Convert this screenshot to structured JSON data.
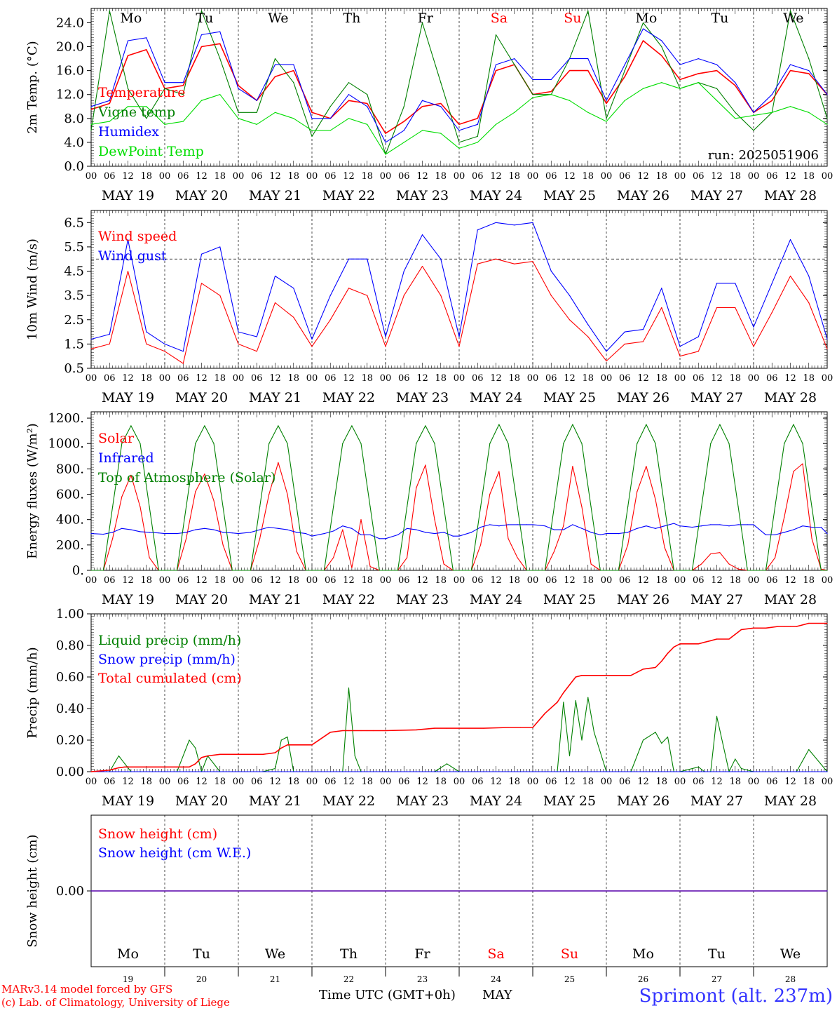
{
  "station_title": "Sprimont (alt. 237m)",
  "credit_line1": "MARv3.14 model forced by GFS",
  "credit_line2": "(c) Lab. of Climatology, University of Liege",
  "x_axis_title": "Time UTC (GMT+0h)",
  "month_label": "MAY",
  "day_names": [
    "Mo",
    "Tu",
    "We",
    "Th",
    "Fr",
    "Sa",
    "Su",
    "Mo",
    "Tu",
    "We"
  ],
  "day_name_colors": [
    "#000000",
    "#000000",
    "#000000",
    "#000000",
    "#000000",
    "#ff0000",
    "#ff0000",
    "#000000",
    "#000000",
    "#000000"
  ],
  "date_labels": [
    "MAY 19",
    "MAY 20",
    "MAY 21",
    "MAY 22",
    "MAY 23",
    "MAY 24",
    "MAY 25",
    "MAY 26",
    "MAY 27",
    "MAY 28"
  ],
  "day_numbers": [
    "19",
    "20",
    "21",
    "22",
    "23",
    "24",
    "25",
    "26",
    "27",
    "28"
  ],
  "hour_tick_labels": [
    "00",
    "06",
    "12",
    "18"
  ],
  "final_hour_label": "00",
  "colors": {
    "red": "#ff0000",
    "green": "#008000",
    "blue": "#0000ff",
    "lightgreen": "#00dd00"
  },
  "chart_data": [
    {
      "type": "line",
      "ylabel": "2m Temp. (°C)",
      "ylim": [
        0,
        26.4
      ],
      "yticks": [
        "0.0",
        "4.0",
        "8.0",
        "12.0",
        "16.0",
        "20.0",
        "24.0"
      ],
      "annotation": "run: 2025051906",
      "legend": [
        "Temperature",
        "Vigne temp",
        "Humidex",
        "DewPoint Temp"
      ],
      "x_hours": [
        0,
        6,
        12,
        18,
        24,
        30,
        36,
        42,
        48,
        54,
        60,
        66,
        72,
        78,
        84,
        90,
        96,
        102,
        108,
        114,
        120,
        126,
        132,
        138,
        144,
        150,
        156,
        162,
        168,
        174,
        180,
        186,
        192,
        198,
        204,
        210,
        216,
        222,
        228,
        234,
        240
      ],
      "series": [
        {
          "name": "Temperature",
          "color": "#ff0000",
          "values": [
            9.5,
            10.5,
            18.5,
            19.5,
            13,
            13.5,
            20,
            20.5,
            13.5,
            11,
            15,
            16,
            9,
            8,
            11,
            10.5,
            5.5,
            7.5,
            10,
            10.5,
            7,
            8,
            16,
            17,
            12,
            12.5,
            16,
            16,
            10.5,
            15,
            21,
            18.5,
            14.5,
            15.5,
            16,
            13.5,
            9,
            11,
            16,
            15.5,
            12
          ]
        },
        {
          "name": "Vigne temp",
          "color": "#008000",
          "values": [
            6,
            26,
            13,
            8,
            13,
            12,
            26,
            18,
            9,
            9,
            18,
            14,
            5,
            10,
            14,
            12,
            2,
            10,
            24,
            14,
            4,
            5,
            22,
            17,
            12,
            12,
            18,
            26,
            8,
            16,
            24,
            20,
            13,
            14,
            13,
            9,
            6,
            9,
            26,
            18,
            8
          ]
        },
        {
          "name": "Humidex",
          "color": "#0000ff",
          "values": [
            10,
            11,
            21,
            21.5,
            14,
            14,
            22,
            22.5,
            13,
            11,
            17,
            17,
            8,
            8,
            12,
            10,
            4,
            6,
            11,
            10,
            6,
            7,
            17,
            18,
            14.5,
            14.5,
            18,
            18,
            11,
            17,
            23,
            21,
            17,
            18,
            17,
            14,
            9,
            12,
            17,
            16,
            12
          ]
        },
        {
          "name": "DewPoint Temp",
          "color": "#00dd00",
          "values": [
            7,
            7.5,
            10,
            10,
            7,
            7.5,
            11,
            12,
            8,
            7,
            9,
            8,
            6,
            6,
            8,
            7,
            2,
            4,
            6,
            5.5,
            3,
            4,
            7,
            9,
            11.5,
            12,
            11,
            9,
            7.5,
            11,
            13,
            14,
            13,
            14,
            11,
            8,
            8.5,
            9,
            10,
            9,
            7
          ]
        }
      ]
    },
    {
      "type": "line",
      "ylabel": "10m Wind (m/s)",
      "ylim": [
        0.5,
        7.0
      ],
      "yticks": [
        "0.5",
        "1.5",
        "2.5",
        "3.5",
        "4.5",
        "5.5",
        "6.5"
      ],
      "reference_line": 5.0,
      "legend": [
        "Wind speed",
        "Wind gust"
      ],
      "x_hours": [
        0,
        6,
        12,
        18,
        24,
        30,
        36,
        42,
        48,
        54,
        60,
        66,
        72,
        78,
        84,
        90,
        96,
        102,
        108,
        114,
        120,
        126,
        132,
        138,
        144,
        150,
        156,
        162,
        168,
        174,
        180,
        186,
        192,
        198,
        204,
        210,
        216,
        222,
        228,
        234,
        240
      ],
      "series": [
        {
          "name": "Wind speed",
          "color": "#ff0000",
          "values": [
            1.3,
            1.5,
            4.5,
            1.5,
            1.2,
            0.7,
            4,
            3.5,
            1.5,
            1.2,
            3.2,
            2.6,
            1.4,
            2.5,
            3.8,
            3.5,
            1.4,
            3.5,
            4.7,
            3.5,
            1.4,
            4.8,
            5.0,
            4.8,
            4.9,
            3.5,
            2.5,
            1.8,
            0.8,
            1.5,
            1.6,
            3.0,
            1.0,
            1.2,
            3.0,
            3.0,
            1.4,
            2.8,
            4.3,
            3.2,
            1.3
          ]
        },
        {
          "name": "Wind gust",
          "color": "#0000ff",
          "values": [
            1.7,
            1.9,
            5.8,
            2,
            1.5,
            1.2,
            5.2,
            5.5,
            2,
            1.8,
            4.3,
            3.8,
            1.7,
            3.5,
            5,
            5,
            1.8,
            4.5,
            6,
            5,
            1.8,
            6.2,
            6.5,
            6.4,
            6.5,
            4.5,
            3.5,
            2.3,
            1.2,
            2.0,
            2.1,
            3.8,
            1.4,
            1.8,
            4.0,
            4.0,
            2.2,
            4,
            5.8,
            4.3,
            1.7
          ]
        }
      ]
    },
    {
      "type": "line",
      "ylabel": "Energy fluxes (W/m²)",
      "ylim": [
        0,
        1250
      ],
      "yticks": [
        "0.",
        "200.",
        "400.",
        "600.",
        "800.",
        "1000.",
        "1200."
      ],
      "legend": [
        "Solar",
        "Infrared",
        "Top of Atmosphere (Solar)"
      ],
      "x_hours": [
        0,
        4,
        7,
        10,
        13,
        16,
        19,
        22,
        24,
        28,
        31,
        34,
        37,
        40,
        43,
        46,
        48,
        52,
        55,
        58,
        61,
        64,
        67,
        70,
        72,
        76,
        79,
        82,
        85,
        88,
        91,
        94,
        96,
        100,
        103,
        106,
        109,
        112,
        115,
        118,
        120,
        124,
        127,
        130,
        133,
        136,
        139,
        142,
        144,
        148,
        151,
        154,
        157,
        160,
        163,
        166,
        168,
        172,
        175,
        178,
        181,
        184,
        187,
        190,
        192,
        196,
        199,
        202,
        205,
        208,
        211,
        214,
        216,
        220,
        223,
        226,
        229,
        232,
        235,
        238,
        240
      ],
      "series": [
        {
          "name": "Solar",
          "color": "#ff0000",
          "values": [
            0,
            0,
            250,
            580,
            750,
            500,
            100,
            0,
            0,
            0,
            250,
            620,
            760,
            550,
            200,
            0,
            0,
            0,
            250,
            600,
            850,
            600,
            150,
            0,
            0,
            0,
            100,
            320,
            20,
            400,
            30,
            0,
            0,
            0,
            100,
            650,
            830,
            400,
            50,
            0,
            0,
            0,
            200,
            600,
            780,
            250,
            100,
            0,
            0,
            0,
            150,
            350,
            820,
            500,
            50,
            0,
            0,
            0,
            200,
            620,
            820,
            560,
            180,
            0,
            0,
            0,
            50,
            130,
            140,
            50,
            10,
            0,
            0,
            0,
            100,
            420,
            780,
            840,
            250,
            10,
            0
          ]
        },
        {
          "name": "Infrared",
          "color": "#0000ff",
          "values": [
            290,
            285,
            300,
            330,
            320,
            305,
            300,
            295,
            290,
            290,
            300,
            320,
            330,
            320,
            300,
            295,
            290,
            300,
            320,
            340,
            330,
            320,
            300,
            290,
            270,
            290,
            310,
            350,
            330,
            280,
            280,
            250,
            250,
            280,
            330,
            320,
            300,
            290,
            300,
            270,
            270,
            300,
            340,
            360,
            350,
            360,
            360,
            360,
            360,
            350,
            320,
            320,
            360,
            330,
            300,
            280,
            290,
            290,
            300,
            330,
            350,
            330,
            350,
            370,
            350,
            340,
            350,
            360,
            360,
            350,
            360,
            360,
            360,
            280,
            280,
            300,
            320,
            350,
            340,
            340,
            290
          ]
        },
        {
          "name": "Top of Atmosphere (Solar)",
          "color": "#008000",
          "values": [
            0,
            0,
            500,
            1000,
            1140,
            1000,
            500,
            0,
            0,
            0,
            500,
            1000,
            1140,
            1000,
            500,
            0,
            0,
            0,
            500,
            1000,
            1140,
            1000,
            500,
            0,
            0,
            0,
            500,
            1000,
            1140,
            1000,
            500,
            0,
            0,
            0,
            500,
            1000,
            1140,
            1000,
            500,
            0,
            0,
            0,
            500,
            1000,
            1150,
            1000,
            500,
            0,
            0,
            0,
            500,
            1000,
            1150,
            1000,
            500,
            0,
            0,
            0,
            500,
            1000,
            1150,
            1000,
            500,
            0,
            0,
            0,
            500,
            1000,
            1150,
            1000,
            500,
            0,
            0,
            0,
            500,
            1000,
            1150,
            1000,
            500,
            0,
            0
          ]
        }
      ]
    },
    {
      "type": "line",
      "ylabel": "Precip (mm/h)",
      "ylim": [
        0,
        1.0
      ],
      "yticks": [
        "0.00",
        "0.20",
        "0.40",
        "0.60",
        "0.80",
        "1.00"
      ],
      "legend": [
        "Liquid precip (mm/h)",
        "Snow precip (mm/h)",
        "Total cumulated (cm)"
      ],
      "x_hours": [
        0,
        6,
        9,
        11,
        13,
        16,
        20,
        24,
        28,
        32,
        34,
        36,
        38,
        42,
        48,
        56,
        60,
        62,
        64,
        66,
        70,
        72,
        78,
        82,
        84,
        86,
        88,
        90,
        92,
        96,
        106,
        112,
        116,
        120,
        128,
        136,
        140,
        144,
        148,
        152,
        154,
        156,
        158,
        160,
        162,
        164,
        168,
        172,
        176,
        180,
        184,
        186,
        188,
        190,
        192,
        198,
        200,
        202,
        204,
        208,
        210,
        212,
        216,
        220,
        224,
        226,
        228,
        230,
        234,
        240
      ],
      "series": [
        {
          "name": "Liquid precip (mm/h)",
          "color": "#008000",
          "values": [
            0,
            0,
            0.1,
            0.05,
            0,
            0,
            0,
            0,
            0,
            0.2,
            0.15,
            0,
            0.1,
            0,
            0,
            0,
            0.02,
            0.2,
            0.22,
            0,
            0,
            0,
            0,
            0,
            0.53,
            0.1,
            0,
            0,
            0,
            0,
            0,
            0,
            0.05,
            0,
            0,
            0,
            0,
            0,
            0,
            0,
            0.44,
            0.1,
            0.45,
            0.2,
            0.47,
            0.25,
            0,
            0,
            0,
            0.2,
            0.25,
            0.18,
            0.22,
            0,
            0,
            0.03,
            0,
            0,
            0.35,
            0,
            0.08,
            0.02,
            0,
            0,
            0,
            0,
            0,
            0,
            0.14,
            0
          ]
        },
        {
          "name": "Snow precip (mm/h)",
          "color": "#0000ff",
          "values": [
            0,
            0,
            0,
            0,
            0,
            0,
            0,
            0,
            0,
            0,
            0,
            0,
            0,
            0,
            0,
            0,
            0,
            0,
            0,
            0,
            0,
            0,
            0,
            0,
            0,
            0,
            0,
            0,
            0,
            0,
            0,
            0,
            0,
            0,
            0,
            0,
            0,
            0,
            0,
            0,
            0,
            0,
            0,
            0,
            0,
            0,
            0,
            0,
            0,
            0,
            0,
            0,
            0,
            0,
            0,
            0,
            0,
            0,
            0,
            0,
            0,
            0,
            0,
            0,
            0,
            0,
            0,
            0,
            0,
            0
          ]
        },
        {
          "name": "Total cumulated (cm)",
          "color": "#ff0000",
          "values": [
            0,
            0.01,
            0.025,
            0.03,
            0.03,
            0.03,
            0.03,
            0.03,
            0.03,
            0.03,
            0.05,
            0.09,
            0.1,
            0.11,
            0.11,
            0.11,
            0.12,
            0.15,
            0.17,
            0.17,
            0.17,
            0.17,
            0.25,
            0.26,
            0.26,
            0.26,
            0.26,
            0.26,
            0.26,
            0.26,
            0.265,
            0.275,
            0.275,
            0.275,
            0.275,
            0.28,
            0.28,
            0.28,
            0.37,
            0.44,
            0.5,
            0.55,
            0.6,
            0.61,
            0.61,
            0.61,
            0.61,
            0.61,
            0.61,
            0.65,
            0.66,
            0.7,
            0.75,
            0.79,
            0.81,
            0.81,
            0.82,
            0.83,
            0.84,
            0.84,
            0.87,
            0.9,
            0.91,
            0.91,
            0.92,
            0.92,
            0.92,
            0.92,
            0.94,
            0.94
          ]
        }
      ]
    },
    {
      "type": "line",
      "ylabel": "Snow height (cm)",
      "ylim": [
        -0.01,
        0.01
      ],
      "yticks": [
        "0.00"
      ],
      "legend": [
        "Snow height (cm)",
        "Snow height (cm W.E.)"
      ],
      "x_hours": [
        0,
        240
      ],
      "series": [
        {
          "name": "Snow height (cm)",
          "color": "#ff0000",
          "values": [
            0,
            0
          ]
        },
        {
          "name": "Snow height (cm W.E.)",
          "color": "#0000ff",
          "values": [
            0,
            0
          ]
        }
      ]
    }
  ]
}
